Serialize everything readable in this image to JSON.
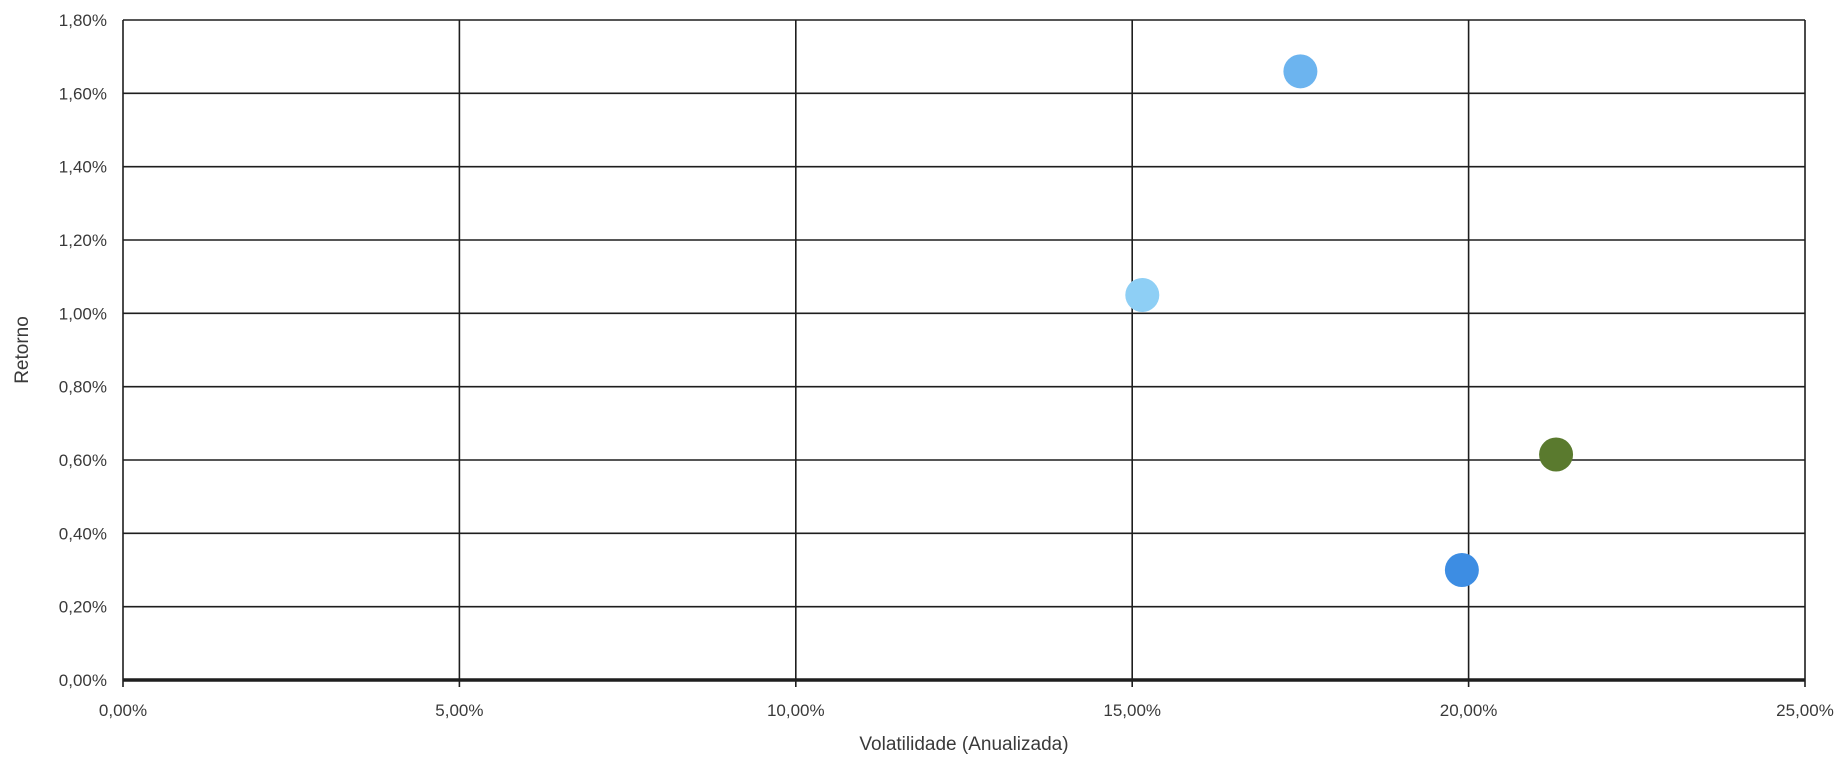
{
  "chart_data": {
    "type": "scatter",
    "title": "",
    "xlabel": "Volatilidade (Anualizada)",
    "ylabel": "Retorno",
    "xlim": [
      0,
      25
    ],
    "ylim": [
      0,
      1.8
    ],
    "x_ticks": [
      0,
      5,
      10,
      15,
      20,
      25
    ],
    "y_ticks": [
      0,
      0.2,
      0.4,
      0.6,
      0.8,
      1.0,
      1.2,
      1.4,
      1.6,
      1.8
    ],
    "x_tick_labels": [
      "0,00%",
      "5,00%",
      "10,00%",
      "15,00%",
      "20,00%",
      "25,00%"
    ],
    "y_tick_labels": [
      "0,00%",
      "0,20%",
      "0,40%",
      "0,60%",
      "0,80%",
      "1,00%",
      "1,20%",
      "1,40%",
      "1,60%",
      "1,80%"
    ],
    "grid": true,
    "legend": "none",
    "points": [
      {
        "x": 15.15,
        "y": 1.05,
        "color": "#8ecff5"
      },
      {
        "x": 17.5,
        "y": 1.66,
        "color": "#6cb4ef"
      },
      {
        "x": 19.9,
        "y": 0.3,
        "color": "#3d8de3"
      },
      {
        "x": 21.3,
        "y": 0.615,
        "color": "#5a7a2e"
      }
    ]
  }
}
